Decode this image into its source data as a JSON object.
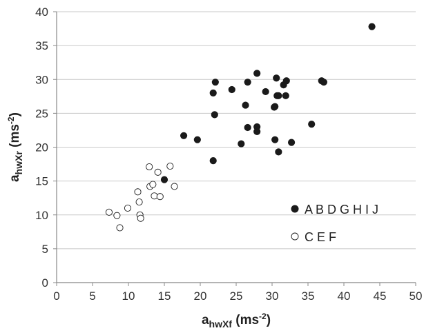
{
  "chart_data": {
    "type": "scatter",
    "title": "",
    "xlabel": {
      "main": "a",
      "sub": "hwXf",
      "pre_sup": " (ms",
      "sup": "-2",
      "post": ")"
    },
    "ylabel": {
      "main": "a",
      "sub": "hwXr",
      "pre_sup": " (ms",
      "sup": "-2",
      "post": ")"
    },
    "xlim": [
      0,
      50
    ],
    "ylim": [
      0,
      40
    ],
    "xticks": [
      0,
      5,
      10,
      15,
      20,
      25,
      30,
      35,
      40,
      45,
      50
    ],
    "yticks": [
      0,
      5,
      10,
      15,
      20,
      25,
      30,
      35,
      40
    ],
    "grid": {
      "horizontal": true,
      "vertical": false
    },
    "legend_placement": "bottom-right",
    "series": [
      {
        "name": "A B D G H I J",
        "marker": "filled-circle",
        "color": "#1a1a1a",
        "points": [
          [
            15.0,
            15.2
          ],
          [
            17.7,
            21.7
          ],
          [
            19.6,
            21.1
          ],
          [
            21.8,
            18.0
          ],
          [
            21.8,
            28.0
          ],
          [
            22.0,
            24.8
          ],
          [
            22.1,
            29.6
          ],
          [
            24.4,
            28.5
          ],
          [
            25.7,
            20.5
          ],
          [
            26.3,
            26.2
          ],
          [
            26.6,
            29.6
          ],
          [
            26.6,
            22.9
          ],
          [
            27.9,
            30.9
          ],
          [
            27.9,
            23.0
          ],
          [
            27.9,
            22.3
          ],
          [
            29.1,
            28.2
          ],
          [
            30.3,
            25.9
          ],
          [
            30.4,
            26.0
          ],
          [
            30.4,
            21.1
          ],
          [
            30.6,
            30.2
          ],
          [
            30.7,
            27.6
          ],
          [
            30.9,
            19.3
          ],
          [
            30.9,
            27.6
          ],
          [
            31.6,
            29.2
          ],
          [
            31.9,
            27.6
          ],
          [
            32.0,
            29.8
          ],
          [
            32.7,
            20.7
          ],
          [
            35.5,
            23.4
          ],
          [
            36.9,
            29.8
          ],
          [
            37.2,
            29.6
          ],
          [
            43.9,
            37.8
          ]
        ]
      },
      {
        "name": "C E F",
        "marker": "open-circle",
        "color": "#1a1a1a",
        "points": [
          [
            7.3,
            10.4
          ],
          [
            8.4,
            9.9
          ],
          [
            8.8,
            8.1
          ],
          [
            9.9,
            11.0
          ],
          [
            11.3,
            13.4
          ],
          [
            11.5,
            11.9
          ],
          [
            11.6,
            10.0
          ],
          [
            11.7,
            9.5
          ],
          [
            12.9,
            17.1
          ],
          [
            13.0,
            14.2
          ],
          [
            13.4,
            14.5
          ],
          [
            13.6,
            12.8
          ],
          [
            14.1,
            16.3
          ],
          [
            14.4,
            12.7
          ],
          [
            15.8,
            17.2
          ],
          [
            16.4,
            14.2
          ]
        ]
      }
    ]
  }
}
